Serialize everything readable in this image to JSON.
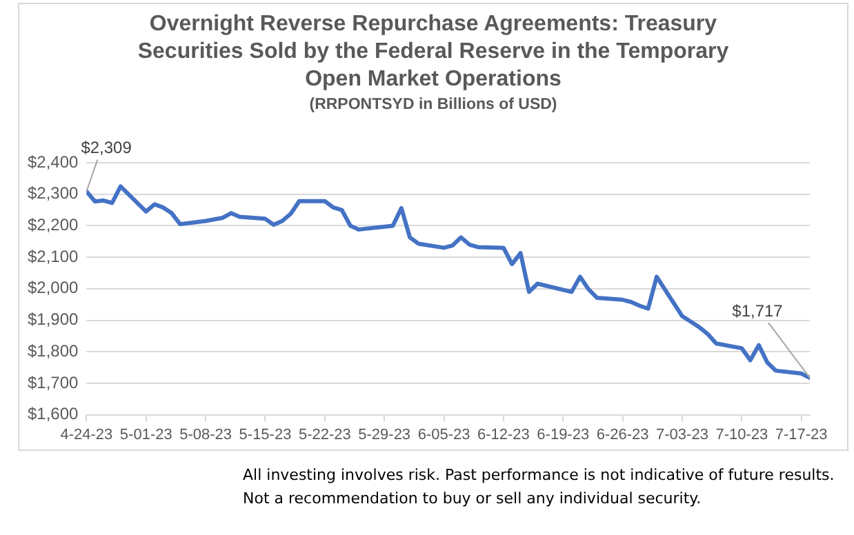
{
  "chart_data": {
    "type": "line",
    "title": "Overnight Reverse Repurchase Agreements: Treasury Securities Sold by the Federal Reserve in the Temporary Open Market Operations",
    "subtitle": "(RRPONTSYD in Billions of USD)",
    "x": [
      "--04-24",
      "--04-25",
      "--04-26",
      "--04-27",
      "--04-28",
      "--05-01",
      "--05-02",
      "--05-03",
      "--05-04",
      "--05-05",
      "--05-08",
      "--05-09",
      "--05-10",
      "--05-11",
      "--05-12",
      "--05-15",
      "--05-16",
      "--05-17",
      "--05-18",
      "--05-19",
      "--05-22",
      "--05-23",
      "--05-24",
      "--05-25",
      "--05-26",
      "--05-30",
      "--05-31",
      "--06-01",
      "--06-02",
      "--06-05",
      "--06-06",
      "--06-07",
      "--06-08",
      "--06-09",
      "--06-12",
      "--06-13",
      "--06-14",
      "--06-15",
      "--06-16",
      "--06-20",
      "--06-21",
      "--06-22",
      "--06-23",
      "--06-26",
      "--06-27",
      "--06-28",
      "--06-29",
      "--06-30",
      "--07-03",
      "--07-05",
      "--07-06",
      "--07-07",
      "--07-10",
      "--07-11",
      "--07-12",
      "--07-13",
      "--07-14",
      "--07-17",
      "--07-18"
    ],
    "series": [
      {
        "color": "#4472c4",
        "values": [
          2309,
          2277,
          2280,
          2272,
          2325,
          2245,
          2268,
          2258,
          2240,
          2205,
          2215,
          2220,
          2225,
          2240,
          2228,
          2222,
          2203,
          2215,
          2238,
          2278,
          2278,
          2258,
          2250,
          2200,
          2188,
          2200,
          2256,
          2163,
          2143,
          2130,
          2137,
          2163,
          2140,
          2132,
          2130,
          2078,
          2113,
          1990,
          2016,
          1990,
          2038,
          1998,
          1971,
          1965,
          1958,
          1946,
          1937,
          2038,
          1913,
          1878,
          1856,
          1826,
          1811,
          1773,
          1821,
          1766,
          1740,
          1731,
          1717
        ]
      }
    ],
    "xlim": [
      "--04-24",
      "--07-18"
    ],
    "xticks": [
      {
        "value": "--04-24",
        "label": "4-24-23"
      },
      {
        "value": "--05-01",
        "label": "5-01-23"
      },
      {
        "value": "--05-08",
        "label": "5-08-23"
      },
      {
        "value": "--05-15",
        "label": "5-15-23"
      },
      {
        "value": "--05-22",
        "label": "5-22-23"
      },
      {
        "value": "--05-29",
        "label": "5-29-23"
      },
      {
        "value": "--06-05",
        "label": "6-05-23"
      },
      {
        "value": "--06-12",
        "label": "6-12-23"
      },
      {
        "value": "--06-19",
        "label": "6-19-23"
      },
      {
        "value": "--06-26",
        "label": "6-26-23"
      },
      {
        "value": "--07-03",
        "label": "7-03-23"
      },
      {
        "value": "--07-10",
        "label": "7-10-23"
      },
      {
        "value": "--07-17",
        "label": "7-17-23"
      }
    ],
    "ylim": [
      1600,
      2400
    ],
    "yticks": [
      {
        "value": 1600,
        "label": "$1,600"
      },
      {
        "value": 1700,
        "label": "$1,700"
      },
      {
        "value": 1800,
        "label": "$1,800"
      },
      {
        "value": 1900,
        "label": "$1,900"
      },
      {
        "value": 2000,
        "label": "$2,000"
      },
      {
        "value": 2100,
        "label": "$2,100"
      },
      {
        "value": 2200,
        "label": "$2,200"
      },
      {
        "value": 2300,
        "label": "$2,300"
      },
      {
        "value": 2400,
        "label": "$2,400"
      }
    ],
    "grid": "y",
    "legend": false,
    "marker": "none",
    "line_style": "solid",
    "annotations": [
      {
        "text": "$2,309",
        "x": "--04-24",
        "y": 2309
      },
      {
        "text": "$1,717",
        "x": "--07-18",
        "y": 1717
      },
      "All investing involves risk. Past performance is not indicative of future results.",
      "Not a recommendation to buy or sell any individual security."
    ]
  }
}
